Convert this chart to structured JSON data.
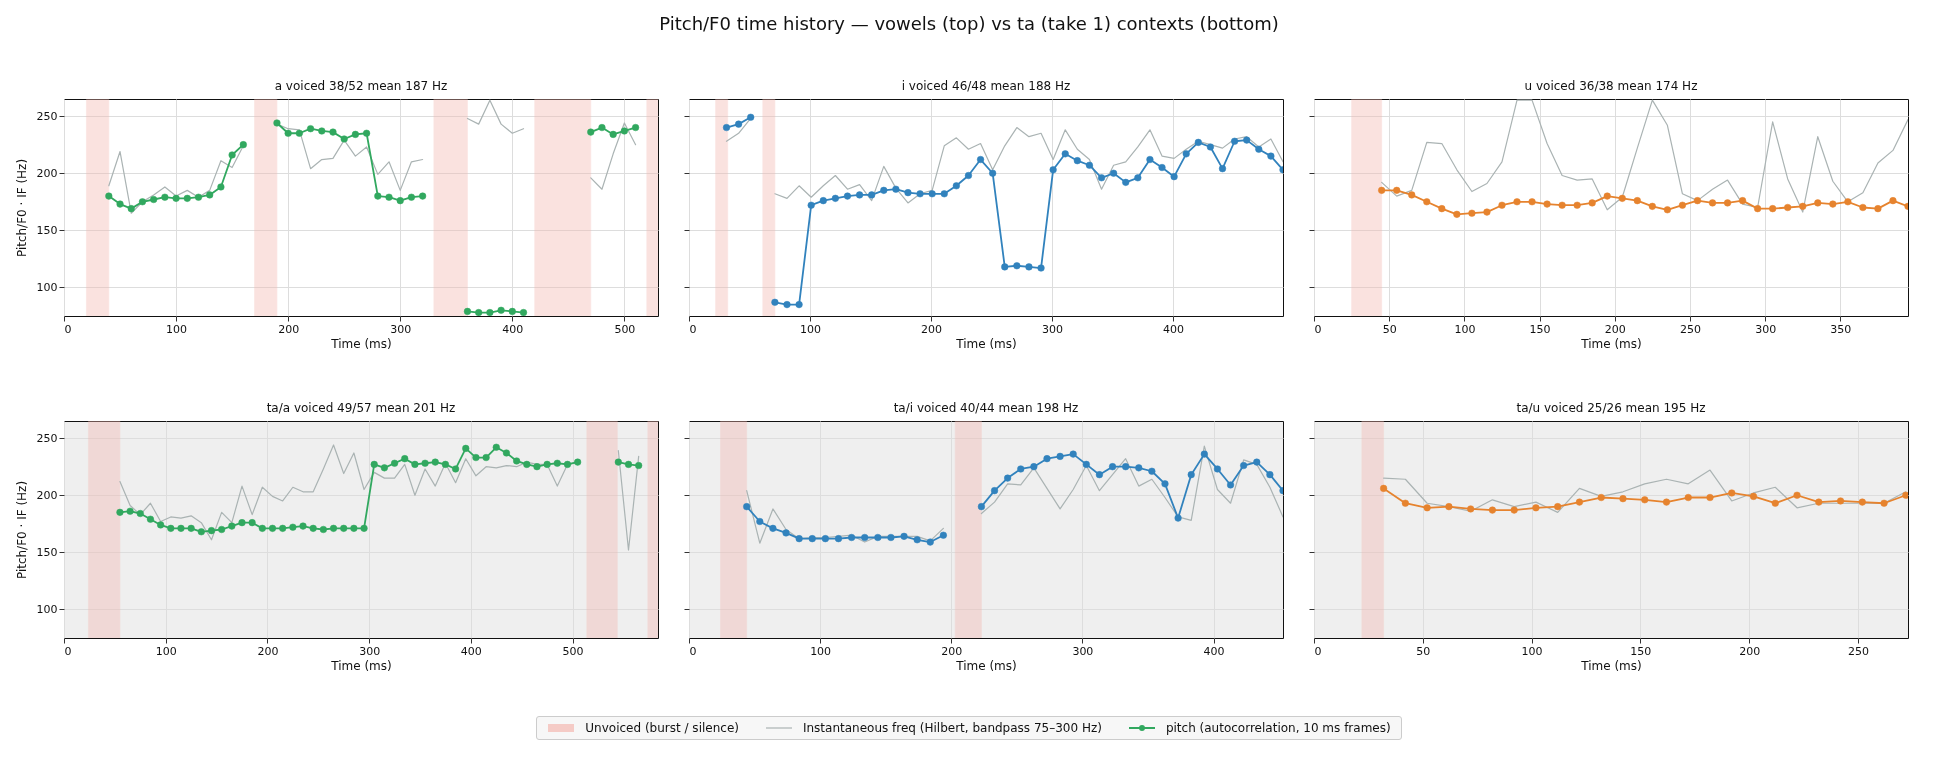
{
  "chart_data": [
    {
      "type": "line",
      "title": "a  voiced 38/52  mean 187 Hz",
      "xlabel": "Time (ms)",
      "ylabel": "Pitch/F0 · IF (Hz)",
      "xlim": [
        0,
        530
      ],
      "ylim": [
        75,
        265
      ],
      "xticks": [
        0,
        100,
        200,
        300,
        400,
        500
      ],
      "yticks": [
        100,
        150,
        200,
        250
      ],
      "grid": true,
      "legend": "bottom",
      "marker": "circle",
      "annotations": [
        "Pitch/F0 time history — vowels (top) vs ta (take 1) contexts (bottom)"
      ],
      "bands": [
        {
          "axis": "x",
          "from": 20,
          "to": 40,
          "label": "Unvoiced (burst / silence)",
          "color": "#f3b8b1"
        },
        {
          "axis": "x",
          "from": 170,
          "to": 190,
          "color": "#f3b8b1"
        },
        {
          "axis": "x",
          "from": 330,
          "to": 360,
          "color": "#f3b8b1"
        },
        {
          "axis": "x",
          "from": 420,
          "to": 470,
          "color": "#f3b8b1"
        },
        {
          "axis": "x",
          "from": 520,
          "to": 530,
          "color": "#f3b8b1"
        }
      ],
      "x": [
        40,
        50,
        60,
        70,
        80,
        90,
        100,
        110,
        120,
        130,
        140,
        150,
        160,
        170,
        180,
        190,
        200,
        210,
        220,
        230,
        240,
        250,
        260,
        270,
        280,
        290,
        300,
        310,
        320,
        330,
        340,
        350,
        360,
        370,
        380,
        390,
        400,
        410,
        420,
        430,
        440,
        450,
        460,
        470,
        480,
        490,
        500,
        510
      ],
      "series": [
        {
          "name": "Instantaneous freq (Hilbert, bandpass 75–300 Hz)",
          "color": "#aab3b3",
          "marker": "none",
          "values": [
            189,
            219,
            165,
            175,
            181,
            188,
            180,
            185,
            179,
            185,
            211,
            205,
            224,
            null,
            null,
            243,
            239,
            238,
            204,
            212,
            213,
            229,
            215,
            223,
            199,
            210,
            185,
            210,
            212,
            null,
            null,
            null,
            248,
            243,
            264,
            243,
            235,
            239,
            null,
            null,
            null,
            null,
            null,
            196,
            186,
            217,
            244,
            225
          ]
        },
        {
          "name": "pitch (autocorrelation, 10 ms frames)",
          "color": "#31a85f",
          "values": [
            180,
            173,
            169,
            175,
            177,
            179,
            178,
            178,
            179,
            181,
            188,
            216,
            225,
            null,
            null,
            244,
            235,
            235,
            239,
            237,
            236,
            230,
            234,
            235,
            180,
            179,
            176,
            179,
            180,
            null,
            null,
            null,
            79,
            78,
            78,
            80,
            79,
            78,
            null,
            null,
            null,
            null,
            null,
            236,
            240,
            234,
            237,
            240
          ]
        }
      ]
    },
    {
      "type": "line",
      "title": "i  voiced 46/48  mean 188 Hz",
      "xlabel": "Time (ms)",
      "xlim": [
        0,
        491
      ],
      "ylim": [
        75,
        265
      ],
      "xticks": [
        0,
        100,
        200,
        300,
        400
      ],
      "yticks": [
        100,
        150,
        200,
        250
      ],
      "grid": true,
      "marker": "circle",
      "tick_labels": "x",
      "bands": [
        {
          "axis": "x",
          "from": 22,
          "to": 32,
          "color": "#f3b8b1"
        },
        {
          "axis": "x",
          "from": 61,
          "to": 71,
          "color": "#f3b8b1"
        }
      ],
      "x": [
        31,
        41,
        51,
        61,
        71,
        81,
        91,
        101,
        111,
        121,
        131,
        141,
        151,
        161,
        171,
        181,
        191,
        201,
        211,
        221,
        231,
        241,
        251,
        261,
        271,
        281,
        291,
        301,
        311,
        321,
        331,
        341,
        351,
        361,
        371,
        381,
        391,
        401,
        411,
        421,
        431,
        441,
        451,
        461,
        471,
        481,
        491
      ],
      "series": [
        {
          "color": "#aab3b3",
          "marker": "none",
          "values": [
            228,
            235,
            248,
            null,
            182,
            178,
            189,
            179,
            189,
            198,
            186,
            190,
            176,
            206,
            187,
            174,
            182,
            185,
            224,
            231,
            221,
            226,
            203,
            224,
            240,
            232,
            235,
            212,
            238,
            221,
            212,
            186,
            207,
            210,
            223,
            238,
            215,
            213,
            221,
            228,
            225,
            222,
            230,
            232,
            223,
            230,
            210
          ]
        },
        {
          "color": "#3182bd",
          "values": [
            240,
            243,
            249,
            null,
            87,
            85,
            85,
            172,
            176,
            178,
            180,
            181,
            181,
            185,
            186,
            183,
            182,
            182,
            182,
            189,
            198,
            212,
            200,
            118,
            119,
            118,
            117,
            203,
            217,
            211,
            207,
            196,
            200,
            192,
            196,
            212,
            205,
            197,
            217,
            227,
            223,
            204,
            228,
            229,
            221,
            215,
            203
          ]
        }
      ]
    },
    {
      "type": "line",
      "title": "u  voiced 36/38  mean 174 Hz",
      "xlabel": "Time (ms)",
      "xlim": [
        0,
        395
      ],
      "ylim": [
        75,
        265
      ],
      "xticks": [
        0,
        50,
        100,
        150,
        200,
        250,
        300,
        350
      ],
      "yticks": [
        100,
        150,
        200,
        250
      ],
      "grid": true,
      "marker": "circle",
      "tick_labels": "x",
      "bands": [
        {
          "axis": "x",
          "from": 25,
          "to": 45,
          "color": "#f3b8b1"
        }
      ],
      "x": [
        45,
        55,
        65,
        75,
        85,
        95,
        105,
        115,
        125,
        135,
        145,
        155,
        165,
        175,
        185,
        195,
        205,
        215,
        225,
        235,
        245,
        255,
        265,
        275,
        285,
        295,
        305,
        315,
        325,
        335,
        345,
        355,
        365,
        375,
        385,
        395
      ],
      "series": [
        {
          "color": "#aab3b3",
          "marker": "none",
          "values": [
            192,
            180,
            185,
            227,
            226,
            203,
            184,
            191,
            210,
            264,
            264,
            226,
            198,
            194,
            195,
            168,
            179,
            222,
            264,
            242,
            182,
            176,
            186,
            194,
            173,
            170,
            245,
            195,
            166,
            232,
            193,
            175,
            183,
            209,
            220,
            247
          ]
        },
        {
          "color": "#e6832e",
          "values": [
            185,
            185,
            181,
            175,
            169,
            164,
            165,
            166,
            172,
            175,
            175,
            173,
            172,
            172,
            174,
            180,
            178,
            176,
            171,
            168,
            172,
            176,
            174,
            174,
            176,
            169,
            169,
            170,
            171,
            174,
            173,
            175,
            170,
            169,
            176,
            171
          ]
        }
      ]
    },
    {
      "type": "line",
      "title": "ta/a  voiced 49/57  mean 201 Hz",
      "xlabel": "Time (ms)",
      "ylabel": "Pitch/F0 · IF (Hz)",
      "xlim": [
        0,
        584
      ],
      "ylim": [
        75,
        265
      ],
      "xticks": [
        0,
        100,
        200,
        300,
        400,
        500
      ],
      "yticks": [
        100,
        150,
        200,
        250
      ],
      "grid": true,
      "marker": "circle",
      "bands": [
        {
          "axis": "x",
          "from": 24,
          "to": 55,
          "color": "#f3b8b1"
        },
        {
          "axis": "x",
          "from": 514,
          "to": 544,
          "color": "#f3b8b1"
        },
        {
          "axis": "x",
          "from": 574,
          "to": 584,
          "color": "#f3b8b1"
        }
      ],
      "x": [
        55,
        65,
        75,
        85,
        95,
        105,
        115,
        125,
        135,
        145,
        155,
        165,
        175,
        185,
        195,
        205,
        215,
        225,
        235,
        245,
        255,
        265,
        275,
        285,
        295,
        305,
        315,
        325,
        335,
        345,
        355,
        365,
        375,
        385,
        395,
        405,
        415,
        425,
        435,
        445,
        455,
        465,
        475,
        485,
        495,
        505,
        515,
        525,
        535,
        545,
        555,
        565
      ],
      "series": [
        {
          "color": "#aab3b3",
          "marker": "none",
          "values": [
            212,
            191,
            183,
            193,
            177,
            181,
            180,
            182,
            176,
            161,
            185,
            176,
            208,
            183,
            207,
            199,
            195,
            207,
            203,
            203,
            223,
            244,
            219,
            237,
            205,
            220,
            215,
            215,
            227,
            200,
            223,
            208,
            228,
            211,
            232,
            217,
            225,
            224,
            226,
            225,
            229,
            227,
            227,
            208,
            227,
            229,
            null,
            null,
            null,
            239,
            152,
            234
          ]
        },
        {
          "color": "#31a85f",
          "values": [
            185,
            186,
            184,
            179,
            174,
            171,
            171,
            171,
            168,
            169,
            170,
            173,
            176,
            176,
            171,
            171,
            171,
            172,
            173,
            171,
            170,
            171,
            171,
            171,
            171,
            227,
            224,
            228,
            232,
            227,
            228,
            229,
            227,
            223,
            241,
            233,
            233,
            242,
            237,
            230,
            227,
            225,
            227,
            228,
            227,
            229,
            null,
            null,
            null,
            229,
            227,
            226
          ]
        }
      ]
    },
    {
      "type": "line",
      "title": "ta/i  voiced 40/44  mean 198 Hz",
      "xlabel": "Time (ms)",
      "xlim": [
        0,
        453
      ],
      "ylim": [
        75,
        265
      ],
      "xticks": [
        0,
        100,
        200,
        300,
        400
      ],
      "yticks": [
        100,
        150,
        200,
        250
      ],
      "grid": true,
      "marker": "circle",
      "tick_labels": "x",
      "bands": [
        {
          "axis": "x",
          "from": 24,
          "to": 44,
          "color": "#f3b8b1"
        },
        {
          "axis": "x",
          "from": 203,
          "to": 223,
          "color": "#f3b8b1"
        }
      ],
      "x": [
        44,
        54,
        64,
        74,
        84,
        94,
        104,
        114,
        124,
        134,
        144,
        154,
        164,
        174,
        184,
        194,
        209,
        223,
        233,
        243,
        253,
        263,
        273,
        283,
        293,
        303,
        313,
        323,
        333,
        343,
        353,
        363,
        373,
        383,
        393,
        403,
        413,
        423,
        433,
        443,
        453
      ],
      "series": [
        {
          "color": "#aab3b3",
          "marker": "none",
          "values": [
            204,
            158,
            188,
            170,
            162,
            163,
            163,
            164,
            165,
            159,
            164,
            164,
            164,
            164,
            160,
            171,
            null,
            184,
            194,
            210,
            209,
            224,
            206,
            188,
            205,
            226,
            204,
            218,
            232,
            208,
            214,
            198,
            181,
            178,
            243,
            205,
            193,
            231,
            227,
            207,
            181
          ]
        },
        {
          "color": "#3182bd",
          "values": [
            190,
            177,
            171,
            167,
            162,
            162,
            162,
            162,
            163,
            163,
            163,
            163,
            164,
            161,
            159,
            165,
            null,
            190,
            204,
            215,
            223,
            225,
            232,
            234,
            236,
            227,
            218,
            225,
            225,
            224,
            221,
            210,
            180,
            218,
            236,
            223,
            209,
            226,
            229,
            218,
            204
          ]
        }
      ]
    },
    {
      "type": "line",
      "title": "ta/u  voiced 25/26  mean 195 Hz",
      "xlabel": "Time (ms)",
      "xlim": [
        0,
        273
      ],
      "ylim": [
        75,
        265
      ],
      "xticks": [
        0,
        50,
        100,
        150,
        200,
        250
      ],
      "yticks": [
        100,
        150,
        200,
        250
      ],
      "grid": true,
      "marker": "circle",
      "tick_labels": "x",
      "bands": [
        {
          "axis": "x",
          "from": 22,
          "to": 32,
          "color": "#f3b8b1"
        }
      ],
      "x": [
        32,
        42,
        52,
        62,
        72,
        82,
        92,
        102,
        112,
        122,
        132,
        142,
        152,
        162,
        172,
        182,
        192,
        202,
        212,
        222,
        232,
        242,
        252,
        262,
        272
      ],
      "series": [
        {
          "color": "#aab3b3",
          "marker": "none",
          "values": [
            215,
            214,
            193,
            190,
            186,
            196,
            190,
            194,
            185,
            206,
            199,
            203,
            210,
            214,
            210,
            222,
            195,
            202,
            207,
            189,
            193,
            193,
            193,
            193,
            203
          ]
        },
        {
          "color": "#e6832e",
          "values": [
            206,
            193,
            189,
            190,
            188,
            187,
            187,
            189,
            190,
            194,
            198,
            197,
            196,
            194,
            198,
            198,
            202,
            199,
            193,
            200,
            194,
            195,
            194,
            193,
            200
          ]
        }
      ]
    }
  ]
}
